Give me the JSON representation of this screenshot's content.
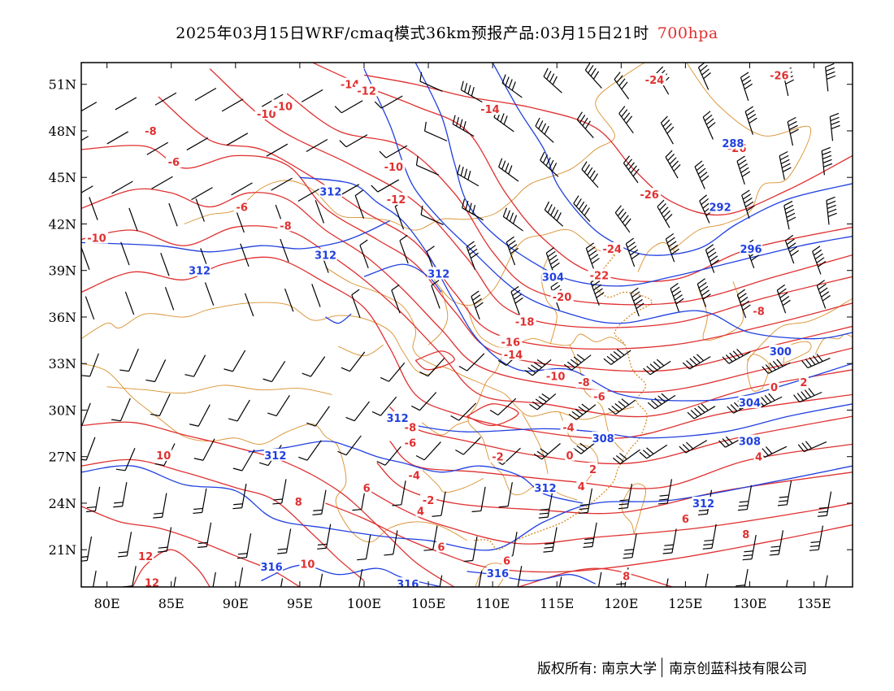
{
  "title": {
    "main": "2025年03月15日WRF/cmaq模式36km预报产品:03月15日21时",
    "level": "700hpa"
  },
  "map": {
    "lon_range": [
      78,
      138
    ],
    "lat_range": [
      18.6,
      52.4
    ],
    "x_ticks": [
      80,
      85,
      90,
      95,
      100,
      105,
      110,
      115,
      120,
      125,
      130,
      135
    ],
    "x_tick_labels": [
      "80E",
      "85E",
      "90E",
      "95E",
      "100E",
      "105E",
      "110E",
      "115E",
      "120E",
      "125E",
      "130E",
      "135E"
    ],
    "y_ticks": [
      21,
      24,
      27,
      30,
      33,
      36,
      39,
      42,
      45,
      48,
      51
    ],
    "y_tick_labels": [
      "21N",
      "24N",
      "27N",
      "30N",
      "33N",
      "36N",
      "39N",
      "42N",
      "45N",
      "48N",
      "51N"
    ],
    "colors": {
      "temperature": "#e03030",
      "geopotential_height": "#2040e0",
      "boundary": "#d9902e",
      "wind_barb": "#000000"
    },
    "temperature_labels": [
      {
        "text": "-14",
        "lon": 98.9,
        "lat": 51.0
      },
      {
        "text": "-12",
        "lon": 100.2,
        "lat": 50.6
      },
      {
        "text": "-10",
        "lon": 92.4,
        "lat": 49.1
      },
      {
        "text": "-10",
        "lon": 93.7,
        "lat": 49.6
      },
      {
        "text": "-8",
        "lon": 83.4,
        "lat": 48.0
      },
      {
        "text": "-6",
        "lon": 85.2,
        "lat": 46.0
      },
      {
        "text": "-6",
        "lon": 90.5,
        "lat": 43.1
      },
      {
        "text": "-8",
        "lon": 93.9,
        "lat": 41.9
      },
      {
        "text": "-10",
        "lon": 79.2,
        "lat": 41.1
      },
      {
        "text": "-10",
        "lon": 102.3,
        "lat": 45.7
      },
      {
        "text": "-12",
        "lon": 102.5,
        "lat": 43.6
      },
      {
        "text": "-14",
        "lon": 109.8,
        "lat": 49.4
      },
      {
        "text": "-24",
        "lon": 122.6,
        "lat": 51.3
      },
      {
        "text": "-26",
        "lon": 132.3,
        "lat": 51.6
      },
      {
        "text": "-26",
        "lon": 122.2,
        "lat": 43.9
      },
      {
        "text": "-26",
        "lon": 129.0,
        "lat": 46.9
      },
      {
        "text": "-24",
        "lon": 119.3,
        "lat": 40.4
      },
      {
        "text": "-22",
        "lon": 118.3,
        "lat": 38.7
      },
      {
        "text": "-20",
        "lon": 115.4,
        "lat": 37.3
      },
      {
        "text": "-18",
        "lon": 112.5,
        "lat": 35.7
      },
      {
        "text": "-16",
        "lon": 111.4,
        "lat": 34.4
      },
      {
        "text": "-14",
        "lon": 111.6,
        "lat": 33.6
      },
      {
        "text": "-10",
        "lon": 114.9,
        "lat": 32.2
      },
      {
        "text": "-8",
        "lon": 117.1,
        "lat": 31.8
      },
      {
        "text": "-6",
        "lon": 118.3,
        "lat": 30.9
      },
      {
        "text": "-4",
        "lon": 115.9,
        "lat": 28.9
      },
      {
        "text": "-2",
        "lon": 110.4,
        "lat": 27.0
      },
      {
        "text": "0",
        "lon": 116.0,
        "lat": 27.1
      },
      {
        "text": "2",
        "lon": 117.8,
        "lat": 26.2
      },
      {
        "text": "4",
        "lon": 116.9,
        "lat": 25.1
      },
      {
        "text": "-8",
        "lon": 103.6,
        "lat": 28.9
      },
      {
        "text": "-6",
        "lon": 103.6,
        "lat": 27.9
      },
      {
        "text": "-4",
        "lon": 103.9,
        "lat": 25.8
      },
      {
        "text": "-2",
        "lon": 105.0,
        "lat": 24.2
      },
      {
        "text": "4",
        "lon": 104.4,
        "lat": 23.5
      },
      {
        "text": "6",
        "lon": 106.0,
        "lat": 21.2
      },
      {
        "text": "6",
        "lon": 111.1,
        "lat": 20.3
      },
      {
        "text": "6",
        "lon": 100.2,
        "lat": 25.0
      },
      {
        "text": "8",
        "lon": 94.9,
        "lat": 24.1
      },
      {
        "text": "10",
        "lon": 84.4,
        "lat": 27.1
      },
      {
        "text": "12",
        "lon": 83.0,
        "lat": 20.6
      },
      {
        "text": "12",
        "lon": 83.5,
        "lat": 18.9
      },
      {
        "text": "10",
        "lon": 95.6,
        "lat": 20.1
      },
      {
        "text": "8",
        "lon": 120.4,
        "lat": 19.3
      },
      {
        "text": "6",
        "lon": 125.0,
        "lat": 23.0
      },
      {
        "text": "8",
        "lon": 129.7,
        "lat": 22.0
      },
      {
        "text": "4",
        "lon": 130.7,
        "lat": 27.0
      },
      {
        "text": "2",
        "lon": 134.2,
        "lat": 31.8
      },
      {
        "text": "0",
        "lon": 131.9,
        "lat": 31.5
      },
      {
        "text": "-8",
        "lon": 130.7,
        "lat": 36.4
      }
    ],
    "height_labels": [
      {
        "text": "312",
        "lon": 97.4,
        "lat": 44.1
      },
      {
        "text": "312",
        "lon": 97.0,
        "lat": 40.0
      },
      {
        "text": "312",
        "lon": 87.2,
        "lat": 39.0
      },
      {
        "text": "312",
        "lon": 105.8,
        "lat": 38.8
      },
      {
        "text": "304",
        "lon": 114.7,
        "lat": 38.6
      },
      {
        "text": "288",
        "lon": 128.7,
        "lat": 47.2
      },
      {
        "text": "292",
        "lon": 127.7,
        "lat": 43.1
      },
      {
        "text": "296",
        "lon": 130.1,
        "lat": 40.4
      },
      {
        "text": "300",
        "lon": 132.4,
        "lat": 33.8
      },
      {
        "text": "304",
        "lon": 130.0,
        "lat": 30.5
      },
      {
        "text": "308",
        "lon": 118.6,
        "lat": 28.2
      },
      {
        "text": "308",
        "lon": 130.0,
        "lat": 28.0
      },
      {
        "text": "312",
        "lon": 114.1,
        "lat": 25.0
      },
      {
        "text": "312",
        "lon": 126.4,
        "lat": 24.0
      },
      {
        "text": "312",
        "lon": 102.6,
        "lat": 29.5
      },
      {
        "text": "312",
        "lon": 93.1,
        "lat": 27.1
      },
      {
        "text": "316",
        "lon": 92.8,
        "lat": 19.9
      },
      {
        "text": "316",
        "lon": 103.4,
        "lat": 18.8
      },
      {
        "text": "316",
        "lon": 110.4,
        "lat": 19.5
      }
    ]
  },
  "footer": {
    "copyright": "版权所有: 南京大学",
    "company": "南京创蓝科技有限公司"
  }
}
